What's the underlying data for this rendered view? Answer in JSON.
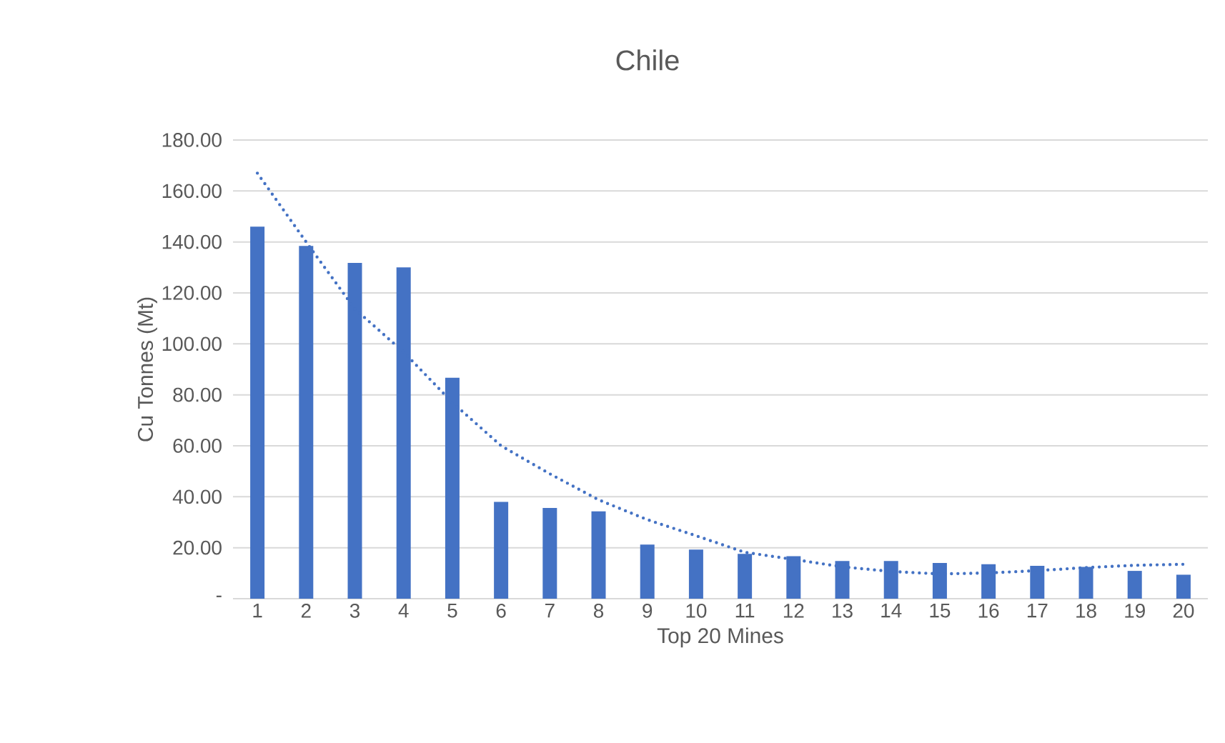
{
  "chart_data": {
    "type": "bar",
    "title": "Chile",
    "xlabel": "Top 20 Mines",
    "ylabel": "Cu Tonnes (Mt)",
    "categories": [
      "1",
      "2",
      "3",
      "4",
      "5",
      "6",
      "7",
      "8",
      "9",
      "10",
      "11",
      "12",
      "13",
      "14",
      "15",
      "16",
      "17",
      "18",
      "19",
      "20"
    ],
    "series": [
      {
        "color": "#4472c4",
        "values": [
          146,
          138.4,
          131.8,
          130,
          86.7,
          38,
          35.6,
          34.3,
          21.2,
          19.3,
          17.6,
          16.7,
          14.8,
          14.8,
          14,
          13.5,
          12.9,
          12.5,
          10.9,
          9.4
        ]
      },
      {
        "type": "line",
        "color": "#4472c4",
        "line_style": "dotted",
        "values": [
          167,
          140,
          113.7,
          96.8,
          77,
          60,
          49,
          38.8,
          31,
          24.7,
          18.2,
          15.4,
          12.5,
          10.7,
          9.7,
          10.1,
          11,
          12.2,
          13.1,
          13.5
        ]
      }
    ],
    "ylim": [
      0,
      180
    ],
    "yticks": [
      {
        "value": 0,
        "label": "-"
      },
      {
        "value": 20,
        "label": "20.00"
      },
      {
        "value": 40,
        "label": "40.00"
      },
      {
        "value": 60,
        "label": "60.00"
      },
      {
        "value": 80,
        "label": "80.00"
      },
      {
        "value": 100,
        "label": "100.00"
      },
      {
        "value": 120,
        "label": "120.00"
      },
      {
        "value": 140,
        "label": "140.00"
      },
      {
        "value": 160,
        "label": "160.00"
      },
      {
        "value": 180,
        "label": "180.00"
      }
    ],
    "grid": "y"
  }
}
